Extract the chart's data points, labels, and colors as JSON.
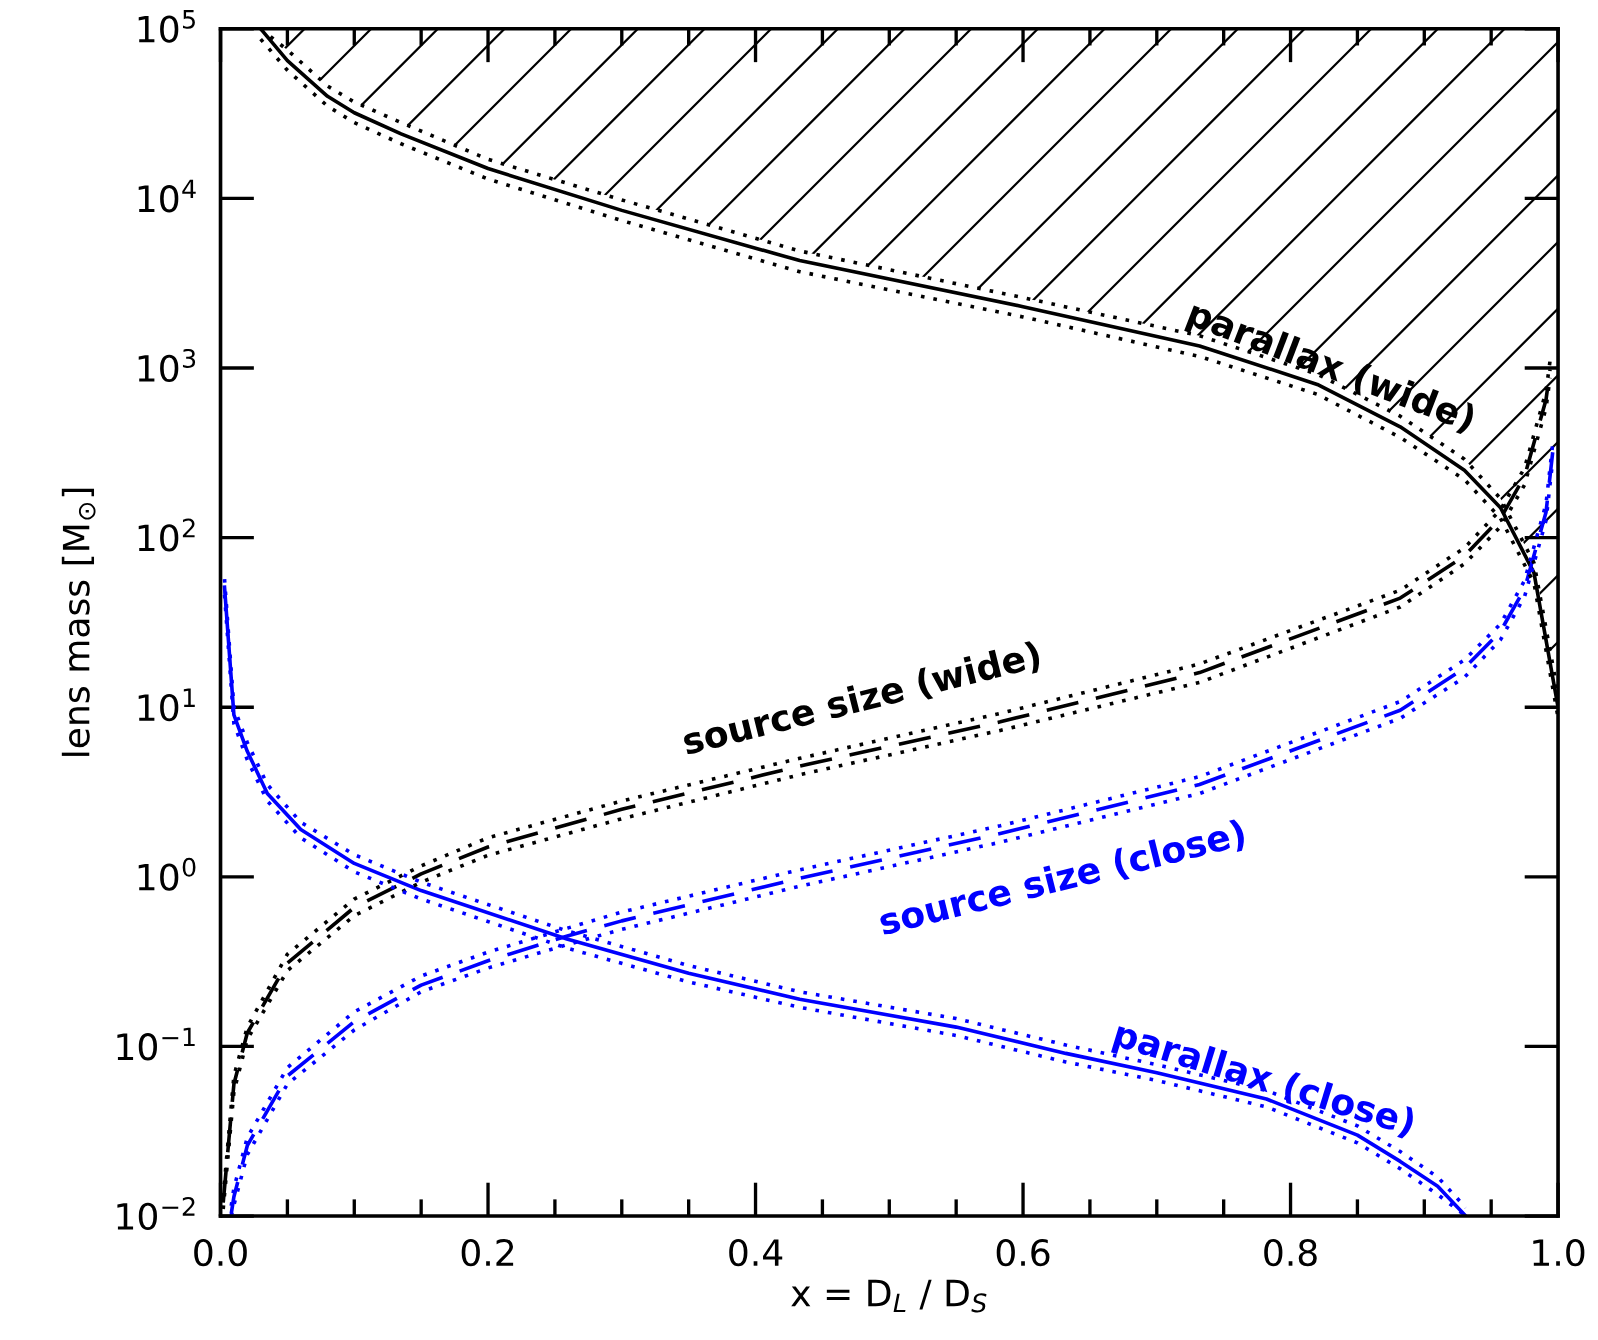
{
  "chart_data": {
    "type": "line",
    "xlabel": "x = D$_{L}$ / D$_{S}$",
    "ylabel": "lens mass [M$_{⊙}$]",
    "log": "y",
    "xlim": [
      0.0,
      1.0
    ],
    "ylim": [
      0.01,
      100000
    ],
    "xticks": [
      {
        "value": 0.0,
        "label": "0.0"
      },
      {
        "value": 0.05,
        "label": null
      },
      {
        "value": 0.1,
        "label": null
      },
      {
        "value": 0.15,
        "label": null
      },
      {
        "value": 0.2,
        "label": "0.2"
      },
      {
        "value": 0.25,
        "label": null
      },
      {
        "value": 0.3,
        "label": null
      },
      {
        "value": 0.35,
        "label": null
      },
      {
        "value": 0.4,
        "label": "0.4"
      },
      {
        "value": 0.45,
        "label": null
      },
      {
        "value": 0.5,
        "label": null
      },
      {
        "value": 0.55,
        "label": null
      },
      {
        "value": 0.6,
        "label": "0.6"
      },
      {
        "value": 0.65,
        "label": null
      },
      {
        "value": 0.7,
        "label": null
      },
      {
        "value": 0.75,
        "label": null
      },
      {
        "value": 0.8,
        "label": "0.8"
      },
      {
        "value": 0.85,
        "label": null
      },
      {
        "value": 0.9,
        "label": null
      },
      {
        "value": 0.95,
        "label": null
      },
      {
        "value": 1.0,
        "label": "1.0"
      }
    ],
    "yticks": [
      {
        "value": 0.01,
        "label": "10$^{−2}$"
      },
      {
        "value": 0.1,
        "label": "10$^{−1}$"
      },
      {
        "value": 1,
        "label": "10$^{0}$"
      },
      {
        "value": 10,
        "label": "10$^{1}$"
      },
      {
        "value": 100,
        "label": "10$^{2}$"
      },
      {
        "value": 1000,
        "label": "10$^{3}$"
      },
      {
        "value": 10000,
        "label": "10$^{4}$"
      },
      {
        "value": 100000,
        "label": "10$^{5}$"
      }
    ],
    "series": [
      {
        "name": "parallax (wide)",
        "color": "#000000",
        "line_style": "solid",
        "x": [
          0.03,
          0.05,
          0.08,
          0.1,
          0.135,
          0.2,
          0.3,
          0.433,
          0.6,
          0.732,
          0.82,
          0.882,
          0.93,
          0.957,
          0.982,
          1.0
        ],
        "values": [
          100000,
          65000,
          40000,
          32000,
          24000,
          15000,
          8500,
          4300,
          2300,
          1350,
          800,
          450,
          250,
          150,
          62,
          10
        ]
      },
      {
        "name": "source size (wide)",
        "color": "#000000",
        "line_style": "dashed",
        "x": [
          0.002,
          0.01,
          0.02,
          0.05,
          0.1,
          0.15,
          0.2,
          0.3,
          0.433,
          0.583,
          0.732,
          0.882,
          0.93,
          0.957,
          0.975,
          0.991,
          0.994
        ],
        "values": [
          0.012,
          0.06,
          0.12,
          0.31,
          0.66,
          1.04,
          1.5,
          2.5,
          4.5,
          8.2,
          16,
          44,
          78,
          130,
          230,
          650,
          980
        ]
      },
      {
        "name": "source size (close)",
        "color": "#0000ff",
        "line_style": "dashed",
        "x": [
          0.008,
          0.01,
          0.02,
          0.05,
          0.1,
          0.15,
          0.2,
          0.26,
          0.3,
          0.433,
          0.583,
          0.732,
          0.882,
          0.93,
          0.957,
          0.975,
          0.991,
          0.996
        ],
        "values": [
          0.0103,
          0.013,
          0.026,
          0.067,
          0.14,
          0.23,
          0.32,
          0.45,
          0.55,
          0.98,
          1.8,
          3.5,
          9.6,
          17,
          28,
          50,
          141,
          319
        ]
      },
      {
        "name": "parallax (close)",
        "color": "#0000ff",
        "line_style": "solid",
        "x": [
          0.003,
          0.01,
          0.02,
          0.035,
          0.06,
          0.1,
          0.15,
          0.259,
          0.35,
          0.433,
          0.55,
          0.632,
          0.7,
          0.782,
          0.85,
          0.882,
          0.91,
          0.931
        ],
        "values": [
          51,
          9,
          5.5,
          3.1,
          1.9,
          1.2,
          0.83,
          0.43,
          0.27,
          0.19,
          0.13,
          0.091,
          0.07,
          0.049,
          0.03,
          0.021,
          0.015,
          0.01
        ]
      },
      {
        "color": "#000000",
        "line_style": "dotted",
        "x": [
          0.03,
          0.05,
          0.08,
          0.1,
          0.135,
          0.2,
          0.3,
          0.433,
          0.6,
          0.732,
          0.82,
          0.882,
          0.93,
          0.957,
          0.982,
          1.0
        ],
        "values": [
          100000,
          75000,
          46000,
          37000,
          28000,
          17000,
          9800,
          4900,
          2600,
          1550,
          920,
          520,
          290,
          170,
          71,
          12
        ]
      },
      {
        "color": "#000000",
        "line_style": "dotted",
        "x": [
          0.03,
          0.05,
          0.08,
          0.1,
          0.135,
          0.2,
          0.3,
          0.433,
          0.6,
          0.732,
          0.82,
          0.882,
          0.93,
          0.957,
          0.982,
          1.0
        ],
        "values": [
          87000,
          57000,
          35000,
          28000,
          21000,
          13000,
          7400,
          3700,
          2000,
          1170,
          700,
          390,
          220,
          130,
          54,
          8.7
        ]
      },
      {
        "color": "#000000",
        "line_style": "dotted",
        "x": [
          0.002,
          0.01,
          0.02,
          0.05,
          0.1,
          0.15,
          0.2,
          0.3,
          0.433,
          0.583,
          0.732,
          0.882,
          0.93,
          0.957,
          0.975,
          0.991,
          0.994
        ],
        "values": [
          0.013,
          0.067,
          0.13,
          0.35,
          0.74,
          1.16,
          1.7,
          2.8,
          5.0,
          9.2,
          18,
          49,
          87,
          146,
          258,
          728,
          1100
        ]
      },
      {
        "color": "#000000",
        "line_style": "dotted",
        "x": [
          0.002,
          0.01,
          0.02,
          0.05,
          0.1,
          0.15,
          0.2,
          0.3,
          0.433,
          0.583,
          0.732,
          0.882,
          0.93,
          0.957,
          0.975,
          0.991,
          0.994
        ],
        "values": [
          0.011,
          0.054,
          0.11,
          0.28,
          0.59,
          0.93,
          1.34,
          2.2,
          4.0,
          7.3,
          14,
          39,
          70,
          116,
          205,
          580,
          875
        ]
      },
      {
        "color": "#0000ff",
        "line_style": "dotted",
        "x": [
          0.008,
          0.01,
          0.02,
          0.05,
          0.1,
          0.15,
          0.2,
          0.26,
          0.3,
          0.433,
          0.583,
          0.732,
          0.882,
          0.93,
          0.957,
          0.975,
          0.991,
          0.996
        ],
        "values": [
          0.0115,
          0.0146,
          0.029,
          0.075,
          0.16,
          0.26,
          0.36,
          0.5,
          0.62,
          1.1,
          2.0,
          3.9,
          10.8,
          19,
          31,
          56,
          158,
          357
        ]
      },
      {
        "color": "#0000ff",
        "line_style": "dotted",
        "x": [
          0.008,
          0.01,
          0.02,
          0.05,
          0.1,
          0.15,
          0.2,
          0.26,
          0.3,
          0.433,
          0.583,
          0.732,
          0.882,
          0.93,
          0.957,
          0.975,
          0.991,
          0.996
        ],
        "values": [
          0.01,
          0.0116,
          0.023,
          0.06,
          0.125,
          0.21,
          0.29,
          0.4,
          0.49,
          0.88,
          1.6,
          3.1,
          8.6,
          15,
          25,
          45,
          126,
          285
        ]
      },
      {
        "color": "#0000ff",
        "line_style": "dotted",
        "x": [
          0.003,
          0.01,
          0.02,
          0.035,
          0.06,
          0.1,
          0.15,
          0.259,
          0.35,
          0.433,
          0.55,
          0.632,
          0.7,
          0.782,
          0.85,
          0.882,
          0.91,
          0.931
        ],
        "values": [
          57,
          10,
          6.2,
          3.5,
          2.1,
          1.35,
          0.93,
          0.48,
          0.3,
          0.21,
          0.146,
          0.102,
          0.078,
          0.055,
          0.034,
          0.024,
          0.017,
          0.0112
        ]
      },
      {
        "color": "#0000ff",
        "line_style": "dotted",
        "x": [
          0.003,
          0.01,
          0.02,
          0.035,
          0.06,
          0.1,
          0.15,
          0.259,
          0.35,
          0.433,
          0.55,
          0.632,
          0.7,
          0.782,
          0.85,
          0.882,
          0.91,
          0.931
        ],
        "values": [
          46,
          8,
          4.9,
          2.8,
          1.7,
          1.07,
          0.74,
          0.38,
          0.24,
          0.17,
          0.116,
          0.081,
          0.063,
          0.044,
          0.027,
          0.019,
          0.0134,
          0.01
        ]
      }
    ]
  }
}
